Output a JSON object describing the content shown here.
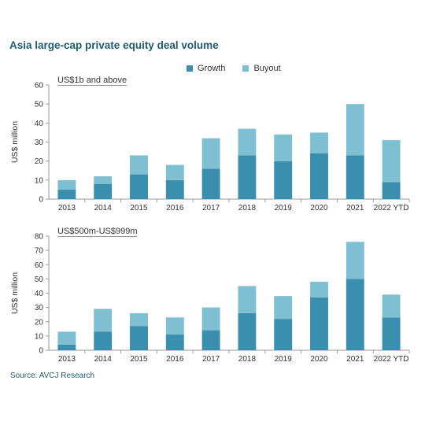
{
  "title": "Asia large-cap private equity deal volume",
  "legend": {
    "growth_label": "Growth",
    "buyout_label": "Buyout"
  },
  "colors": {
    "growth": "#3a8faf",
    "buyout": "#7fbfd2",
    "title": "#1f5b70",
    "axis": "#9a9a9a"
  },
  "source": "Source: AVCJ Research",
  "chart_data": [
    {
      "type": "bar",
      "stacked": true,
      "subtitle": "US$1b and above",
      "ylabel": "US$ million",
      "xlabel": "",
      "ylim": [
        0,
        60
      ],
      "yticks": [
        0,
        10,
        20,
        30,
        40,
        50,
        60
      ],
      "grid": false,
      "legend_position": "top-center",
      "categories": [
        "2013",
        "2014",
        "2015",
        "2016",
        "2017",
        "2018",
        "2019",
        "2020",
        "2021",
        "2022 YTD"
      ],
      "series": [
        {
          "name": "Growth",
          "values": [
            5,
            8,
            13,
            10,
            16,
            23,
            20,
            24,
            23,
            9
          ]
        },
        {
          "name": "Buyout",
          "values": [
            5,
            4,
            10,
            8,
            16,
            14,
            14,
            11,
            27,
            22
          ]
        }
      ]
    },
    {
      "type": "bar",
      "stacked": true,
      "subtitle": "US$500m-US$999m",
      "ylabel": "US$ million",
      "xlabel": "",
      "ylim": [
        0,
        80
      ],
      "yticks": [
        0,
        10,
        20,
        30,
        40,
        50,
        60,
        70,
        80
      ],
      "grid": false,
      "legend_position": "top-center",
      "categories": [
        "2013",
        "2014",
        "2015",
        "2016",
        "2017",
        "2018",
        "2019",
        "2020",
        "2021",
        "2022 YTD"
      ],
      "series": [
        {
          "name": "Growth",
          "values": [
            4,
            13,
            17,
            11,
            14,
            26,
            22,
            37,
            50,
            23
          ]
        },
        {
          "name": "Buyout",
          "values": [
            9,
            16,
            9,
            12,
            16,
            19,
            16,
            11,
            26,
            16
          ]
        }
      ]
    }
  ]
}
